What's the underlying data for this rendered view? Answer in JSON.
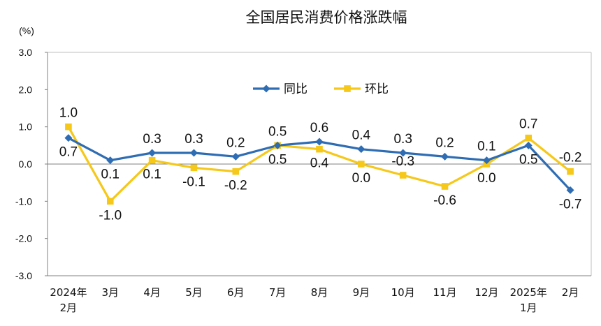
{
  "chart_data": {
    "type": "line",
    "title": "全国居民消费价格涨跌幅",
    "unit_label": "(%)",
    "ylim": [
      -3.0,
      3.0
    ],
    "yticks": [
      "3.0",
      "2.0",
      "1.0",
      "0.0",
      "-1.0",
      "-2.0",
      "-3.0"
    ],
    "ytick_values": [
      3,
      2,
      1,
      0,
      -1,
      -2,
      -3
    ],
    "categories": [
      [
        "2024年",
        "2月"
      ],
      [
        "3月"
      ],
      [
        "4月"
      ],
      [
        "5月"
      ],
      [
        "6月"
      ],
      [
        "7月"
      ],
      [
        "8月"
      ],
      [
        "9月"
      ],
      [
        "10月"
      ],
      [
        "11月"
      ],
      [
        "12月"
      ],
      [
        "2025年",
        "1月"
      ],
      [
        "2月"
      ]
    ],
    "series": [
      {
        "name": "同比",
        "color": "#2E6DB4",
        "marker": "diamond",
        "values": [
          0.7,
          0.1,
          0.3,
          0.3,
          0.2,
          0.5,
          0.6,
          0.4,
          0.3,
          0.2,
          0.1,
          0.5,
          -0.7
        ],
        "labels": [
          "0.7",
          "0.1",
          "0.3",
          "0.3",
          "0.2",
          "0.5",
          "0.6",
          "0.4",
          "0.3",
          "0.2",
          "0.1",
          "0.5",
          "-0.7"
        ]
      },
      {
        "name": "环比",
        "color": "#F5C819",
        "marker": "square",
        "values": [
          1.0,
          -1.0,
          0.1,
          -0.1,
          -0.2,
          0.5,
          0.4,
          0.0,
          -0.3,
          -0.6,
          0.0,
          0.7,
          -0.2
        ],
        "labels": [
          "1.0",
          "-1.0",
          "0.1",
          "-0.1",
          "-0.2",
          "0.5",
          "0.4",
          "0.0",
          "-0.3",
          "-0.6",
          "0.0",
          "0.7",
          "-0.2"
        ]
      }
    ],
    "legend_position": "top-center",
    "grid": false
  }
}
